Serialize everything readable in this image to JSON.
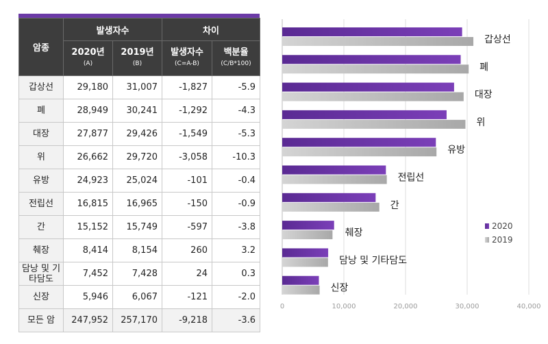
{
  "table": {
    "header": {
      "cancer": "암종",
      "occurrence_group": "발생자수",
      "diff_group": "차이",
      "col_2020": "2020년",
      "col_2020_note": "(A)",
      "col_2019": "2019년",
      "col_2019_note": "(B)",
      "col_diff": "발생자수",
      "col_diff_note": "(C=A-B)",
      "col_pct": "백분율",
      "col_pct_note": "(C/B*100)"
    },
    "rows": [
      {
        "name": "갑상선",
        "y2020": "29,180",
        "y2019": "31,007",
        "diff": "-1,827",
        "pct": "-5.9"
      },
      {
        "name": "폐",
        "y2020": "28,949",
        "y2019": "30,241",
        "diff": "-1,292",
        "pct": "-4.3"
      },
      {
        "name": "대장",
        "y2020": "27,877",
        "y2019": "29,426",
        "diff": "-1,549",
        "pct": "-5.3"
      },
      {
        "name": "위",
        "y2020": "26,662",
        "y2019": "29,720",
        "diff": "-3,058",
        "pct": "-10.3"
      },
      {
        "name": "유방",
        "y2020": "24,923",
        "y2019": "25,024",
        "diff": "-101",
        "pct": "-0.4"
      },
      {
        "name": "전립선",
        "y2020": "16,815",
        "y2019": "16,965",
        "diff": "-150",
        "pct": "-0.9"
      },
      {
        "name": "간",
        "y2020": "15,152",
        "y2019": "15,749",
        "diff": "-597",
        "pct": "-3.8"
      },
      {
        "name": "췌장",
        "y2020": "8,414",
        "y2019": "8,154",
        "diff": "260",
        "pct": "3.2"
      },
      {
        "name": "담낭 및 기타담도",
        "y2020": "7,452",
        "y2019": "7,428",
        "diff": "24",
        "pct": "0.3"
      },
      {
        "name": "신장",
        "y2020": "5,946",
        "y2019": "6,067",
        "diff": "-121",
        "pct": "-2.0"
      }
    ],
    "total": {
      "name": "모든 암",
      "y2020": "247,952",
      "y2019": "257,170",
      "diff": "-9,218",
      "pct": "-3.6"
    }
  },
  "chart_data": {
    "type": "bar",
    "orientation": "horizontal",
    "categories": [
      "갑상선",
      "폐",
      "대장",
      "위",
      "유방",
      "전립선",
      "간",
      "췌장",
      "담낭 및 기타담도",
      "신장"
    ],
    "series": [
      {
        "name": "2020",
        "values": [
          29180,
          28949,
          27877,
          26662,
          24923,
          16815,
          15152,
          8414,
          7452,
          5946
        ]
      },
      {
        "name": "2019",
        "values": [
          31007,
          30241,
          29426,
          29720,
          25024,
          16965,
          15749,
          8154,
          7428,
          6067
        ]
      }
    ],
    "xlim": [
      0,
      40000
    ],
    "xticks": [
      "0",
      "10,000",
      "20,000",
      "30,000",
      "40,000"
    ],
    "legend_position": "right",
    "colors": {
      "s2020": "#7b3fb8",
      "s2019": "#a8a8a8",
      "grid": "#dddddd",
      "axis": "#bbbbbb"
    }
  }
}
